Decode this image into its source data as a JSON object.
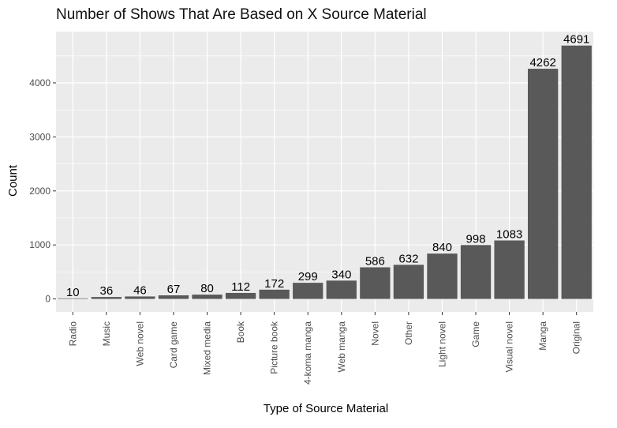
{
  "chart_data": {
    "type": "bar",
    "title": "Number of Shows That Are Based on X Source Material",
    "xlabel": "Type of Source Material",
    "ylabel": "Count",
    "categories": [
      "Radio",
      "Music",
      "Web novel",
      "Card game",
      "Mixed media",
      "Book",
      "Picture book",
      "4-koma manga",
      "Web manga",
      "Novel",
      "Other",
      "Light novel",
      "Game",
      "Visual novel",
      "Manga",
      "Original"
    ],
    "values": [
      10,
      36,
      46,
      67,
      80,
      112,
      172,
      299,
      340,
      586,
      632,
      840,
      998,
      1083,
      4262,
      4691
    ],
    "ylim": [
      -240,
      4950
    ],
    "yticks": [
      0,
      1000,
      2000,
      3000,
      4000
    ],
    "grid": true,
    "bar_color": "#595959",
    "panel_color": "#ebebeb",
    "grid_color": "#ffffff"
  }
}
